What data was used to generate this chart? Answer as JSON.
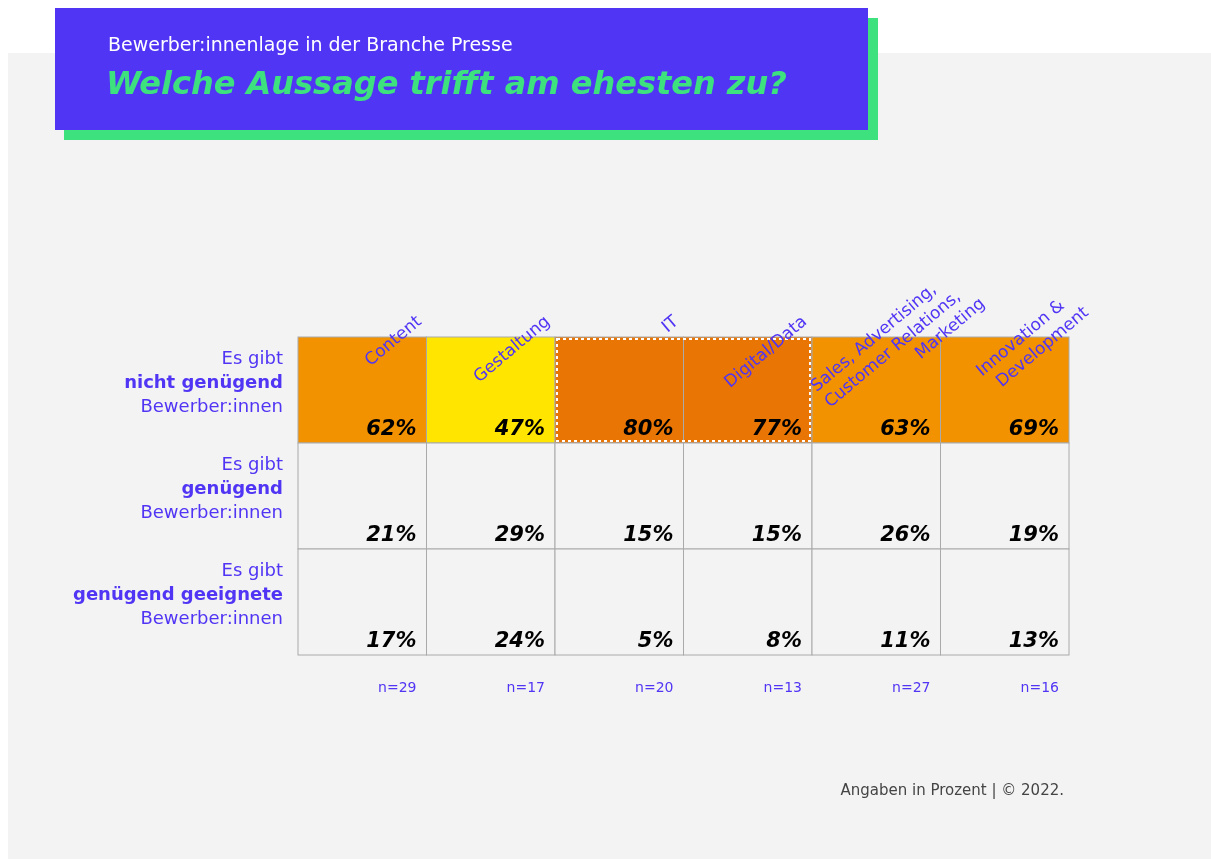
{
  "chart_data": {
    "type": "heatmap",
    "subtitle": "Bewerber:innenlage in der Branche Presse",
    "title": "Welche Aussage trifft am ehesten zu?",
    "categories": [
      "Content",
      "Gestaltung",
      "IT",
      "Digital/Data",
      "Sales, Advertising,\nCustomer Relations,\nMarketing",
      "Innovation &\nDevelopment"
    ],
    "y_categories": [
      "Es gibt\nnicht genügend\nBewerber:innen",
      "Es gibt\ngenügend\nBewerber:innen",
      "Es gibt\ngenügend geeignete\nBewerber:innen"
    ],
    "cells": [
      [
        62,
        47,
        80,
        77,
        63,
        69
      ],
      [
        21,
        29,
        15,
        15,
        26,
        19
      ],
      [
        17,
        24,
        5,
        8,
        11,
        13
      ]
    ],
    "cell_labels": [
      [
        "62%",
        "47%",
        "80%",
        "77%",
        "63%",
        "69%"
      ],
      [
        "21%",
        "29%",
        "15%",
        "15%",
        "26%",
        "19%"
      ],
      [
        "17%",
        "24%",
        "5%",
        "8%",
        "11%",
        "13%"
      ]
    ],
    "colors": [
      [
        "#f39200",
        "#ffe500",
        "#e87504",
        "#e87504",
        "#f39200",
        "#f39200"
      ],
      [
        "#f2f3f2",
        "#f2f3f2",
        "#f2f3f2",
        "#f2f3f2",
        "#f2f3f2",
        "#f2f3f2"
      ],
      [
        "#f2f3f2",
        "#f2f3f2",
        "#f2f3f2",
        "#f2f3f2",
        "#f2f3f2",
        "#f2f3f2"
      ]
    ],
    "annotations": [
      "n=29",
      "n=17",
      "n=20",
      "n=13",
      "n=27",
      "n=16",
      "Angaben in Prozent | © 2022."
    ]
  }
}
